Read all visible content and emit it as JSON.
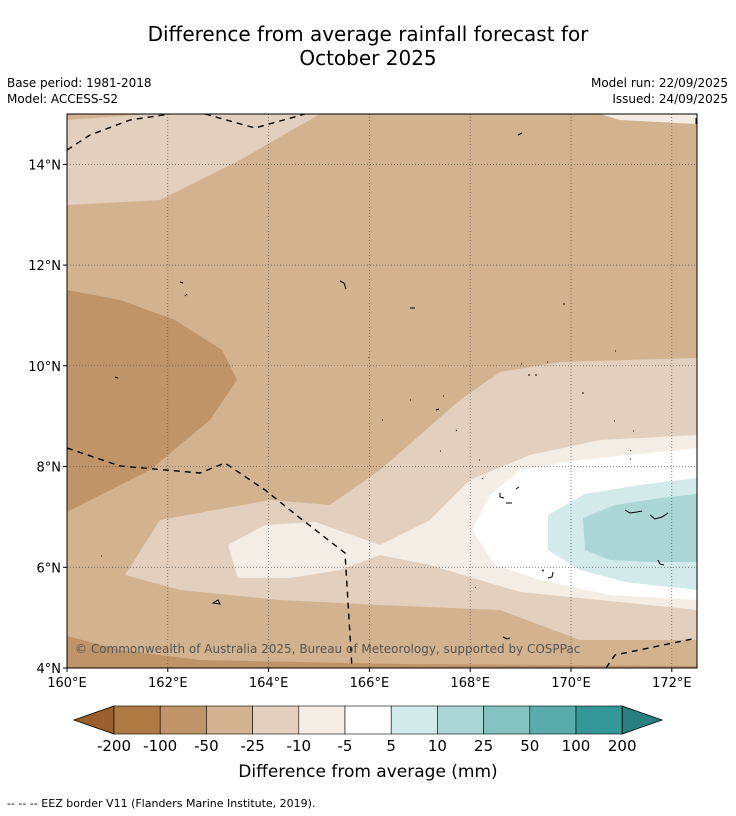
{
  "header": {
    "title_line1": "Difference from average rainfall forecast for",
    "title_line2": "October 2025",
    "base_period": "Base period: 1981-2018",
    "model": "Model: ACCESS-S2",
    "model_run": "Model run: 22/09/2025",
    "issued": "Issued: 24/09/2025"
  },
  "chart_data": {
    "type": "heatmap",
    "subtype": "filled contour map",
    "title": "Difference from average rainfall forecast for October 2025",
    "x_axis": {
      "ticks": [
        "160°E",
        "162°E",
        "164°E",
        "166°E",
        "168°E",
        "170°E",
        "172°E"
      ],
      "range": [
        160,
        172.5
      ],
      "units": "°E"
    },
    "y_axis": {
      "ticks": [
        "4°N",
        "6°N",
        "8°N",
        "10°N",
        "12°N",
        "14°N"
      ],
      "range": [
        4,
        15
      ],
      "units": "°N"
    },
    "gridlines": true,
    "colorbar": {
      "label": "Difference from average (mm)",
      "bounds": [
        "-200",
        "-100",
        "-50",
        "-25",
        "-10",
        "-5",
        "5",
        "10",
        "25",
        "50",
        "100",
        "200"
      ],
      "colors": [
        "#9a5f2c",
        "#af7a42",
        "#c09469",
        "#d3b290",
        "#e3cfbe",
        "#f3ede6",
        "#ffffff",
        "#d3eaea",
        "#abd6d6",
        "#84c2c2",
        "#5aabab",
        "#359898",
        "#2a8080"
      ],
      "extend": "both"
    },
    "regions": [
      {
        "name": "moderately drier (-50 to -25)",
        "color": "#d3b290"
      },
      {
        "name": "drier west pocket (-100 to -50)",
        "color": "#c09469"
      },
      {
        "name": "slightly drier (-25 to -10)",
        "color": "#e3cfbe"
      },
      {
        "name": "near normal dry (-10 to -5)",
        "color": "#f3ede6"
      },
      {
        "name": "near average (-5 to 5)",
        "color": "#ffffff"
      },
      {
        "name": "slightly wetter (5 to 10)",
        "color": "#d3eaea"
      },
      {
        "name": "wetter (10 to 25)",
        "color": "#abd6d6"
      }
    ],
    "overlay": "EEZ border (dashed)",
    "copyright": "© Commonwealth of Australia 2025, Bureau of Meteorology, supported by COSPPac"
  },
  "colorbar_title": "Difference from average (mm)",
  "footnote": "-- -- -- EEZ border V11 (Flanders Marine Institute, 2019)."
}
